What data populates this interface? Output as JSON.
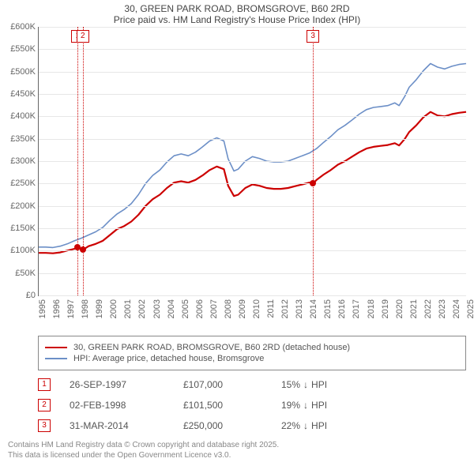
{
  "title_line1": "30, GREEN PARK ROAD, BROMSGROVE, B60 2RD",
  "title_line2": "Price paid vs. HM Land Registry's House Price Index (HPI)",
  "chart": {
    "type": "line",
    "x_start_year": 1995,
    "x_end_year": 2025,
    "ylim_min": 0,
    "ylim_max": 600,
    "ytick_step": 50,
    "y_unit_prefix": "£",
    "y_unit_suffix": "K",
    "grid_color": "#e7e7e7",
    "axis_color": "#666666",
    "background_color": "#ffffff",
    "label_fontsize": 11,
    "series": [
      {
        "name": "price_paid",
        "label": "30, GREEN PARK ROAD, BROMSGROVE, B60 2RD (detached house)",
        "color": "#cc0000",
        "line_width": 2.2,
        "data": [
          [
            1995.0,
            95
          ],
          [
            1995.5,
            95
          ],
          [
            1996.0,
            94
          ],
          [
            1996.5,
            96
          ],
          [
            1997.0,
            100
          ],
          [
            1997.5,
            104
          ],
          [
            1997.74,
            107
          ],
          [
            1998.09,
            101.5
          ],
          [
            1998.5,
            110
          ],
          [
            1999.0,
            115
          ],
          [
            1999.5,
            122
          ],
          [
            2000.0,
            135
          ],
          [
            2000.5,
            148
          ],
          [
            2001.0,
            155
          ],
          [
            2001.5,
            165
          ],
          [
            2002.0,
            180
          ],
          [
            2002.5,
            200
          ],
          [
            2003.0,
            215
          ],
          [
            2003.5,
            225
          ],
          [
            2004.0,
            240
          ],
          [
            2004.5,
            252
          ],
          [
            2005.0,
            255
          ],
          [
            2005.5,
            252
          ],
          [
            2006.0,
            258
          ],
          [
            2006.5,
            268
          ],
          [
            2007.0,
            280
          ],
          [
            2007.5,
            288
          ],
          [
            2008.0,
            282
          ],
          [
            2008.3,
            245
          ],
          [
            2008.7,
            222
          ],
          [
            2009.0,
            225
          ],
          [
            2009.5,
            240
          ],
          [
            2010.0,
            248
          ],
          [
            2010.5,
            245
          ],
          [
            2011.0,
            240
          ],
          [
            2011.5,
            238
          ],
          [
            2012.0,
            238
          ],
          [
            2012.5,
            240
          ],
          [
            2013.0,
            244
          ],
          [
            2013.5,
            248
          ],
          [
            2014.0,
            252
          ],
          [
            2014.25,
            250
          ],
          [
            2014.5,
            258
          ],
          [
            2015.0,
            270
          ],
          [
            2015.5,
            280
          ],
          [
            2016.0,
            292
          ],
          [
            2016.5,
            300
          ],
          [
            2017.0,
            310
          ],
          [
            2017.5,
            320
          ],
          [
            2018.0,
            328
          ],
          [
            2018.5,
            332
          ],
          [
            2019.0,
            334
          ],
          [
            2019.5,
            336
          ],
          [
            2020.0,
            340
          ],
          [
            2020.3,
            335
          ],
          [
            2020.7,
            350
          ],
          [
            2021.0,
            365
          ],
          [
            2021.5,
            380
          ],
          [
            2022.0,
            398
          ],
          [
            2022.5,
            410
          ],
          [
            2023.0,
            402
          ],
          [
            2023.5,
            400
          ],
          [
            2024.0,
            405
          ],
          [
            2024.5,
            408
          ],
          [
            2025.0,
            410
          ]
        ]
      },
      {
        "name": "hpi",
        "label": "HPI: Average price, detached house, Bromsgrove",
        "color": "#6c8fc7",
        "line_width": 1.6,
        "data": [
          [
            1995.0,
            108
          ],
          [
            1995.5,
            108
          ],
          [
            1996.0,
            107
          ],
          [
            1996.5,
            110
          ],
          [
            1997.0,
            115
          ],
          [
            1997.5,
            122
          ],
          [
            1998.0,
            128
          ],
          [
            1998.5,
            135
          ],
          [
            1999.0,
            142
          ],
          [
            1999.5,
            152
          ],
          [
            2000.0,
            168
          ],
          [
            2000.5,
            182
          ],
          [
            2001.0,
            192
          ],
          [
            2001.5,
            205
          ],
          [
            2002.0,
            225
          ],
          [
            2002.5,
            250
          ],
          [
            2003.0,
            268
          ],
          [
            2003.5,
            280
          ],
          [
            2004.0,
            298
          ],
          [
            2004.5,
            312
          ],
          [
            2005.0,
            316
          ],
          [
            2005.5,
            312
          ],
          [
            2006.0,
            320
          ],
          [
            2006.5,
            332
          ],
          [
            2007.0,
            345
          ],
          [
            2007.5,
            352
          ],
          [
            2008.0,
            345
          ],
          [
            2008.3,
            305
          ],
          [
            2008.7,
            278
          ],
          [
            2009.0,
            282
          ],
          [
            2009.5,
            300
          ],
          [
            2010.0,
            310
          ],
          [
            2010.5,
            306
          ],
          [
            2011.0,
            300
          ],
          [
            2011.5,
            298
          ],
          [
            2012.0,
            298
          ],
          [
            2012.5,
            300
          ],
          [
            2013.0,
            306
          ],
          [
            2013.5,
            312
          ],
          [
            2014.0,
            318
          ],
          [
            2014.5,
            328
          ],
          [
            2015.0,
            342
          ],
          [
            2015.5,
            355
          ],
          [
            2016.0,
            370
          ],
          [
            2016.5,
            380
          ],
          [
            2017.0,
            392
          ],
          [
            2017.5,
            405
          ],
          [
            2018.0,
            415
          ],
          [
            2018.5,
            420
          ],
          [
            2019.0,
            422
          ],
          [
            2019.5,
            424
          ],
          [
            2020.0,
            430
          ],
          [
            2020.3,
            424
          ],
          [
            2020.7,
            445
          ],
          [
            2021.0,
            465
          ],
          [
            2021.5,
            482
          ],
          [
            2022.0,
            502
          ],
          [
            2022.5,
            518
          ],
          [
            2023.0,
            510
          ],
          [
            2023.5,
            506
          ],
          [
            2024.0,
            512
          ],
          [
            2024.5,
            516
          ],
          [
            2025.0,
            518
          ]
        ]
      }
    ],
    "sale_markers": [
      {
        "n": "1",
        "year": 1997.74,
        "price": 107
      },
      {
        "n": "2",
        "year": 1998.09,
        "price": 101.5
      },
      {
        "n": "3",
        "year": 2014.25,
        "price": 250
      }
    ]
  },
  "legend": {
    "border_color": "#888888"
  },
  "sales": [
    {
      "n": "1",
      "date": "26-SEP-1997",
      "price": "£107,000",
      "diff_pct": "15%",
      "diff_dir": "down",
      "diff_label": "HPI"
    },
    {
      "n": "2",
      "date": "02-FEB-1998",
      "price": "£101,500",
      "diff_pct": "19%",
      "diff_dir": "down",
      "diff_label": "HPI"
    },
    {
      "n": "3",
      "date": "31-MAR-2014",
      "price": "£250,000",
      "diff_pct": "22%",
      "diff_dir": "down",
      "diff_label": "HPI"
    }
  ],
  "footnote_line1": "Contains HM Land Registry data © Crown copyright and database right 2025.",
  "footnote_line2": "This data is licensed under the Open Government Licence v3.0.",
  "arrow_down": "↓"
}
